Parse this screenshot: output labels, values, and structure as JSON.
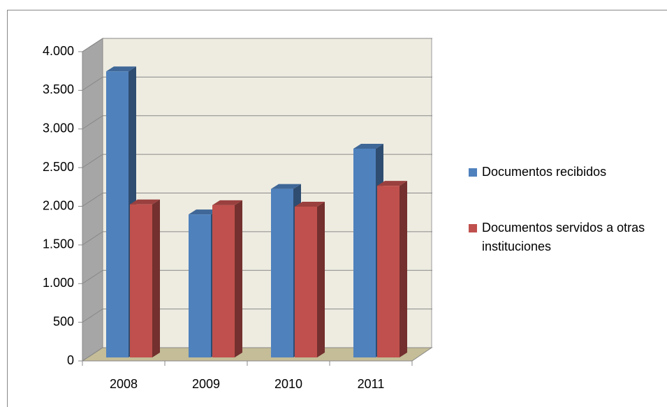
{
  "chart_data": {
    "type": "bar3d",
    "categories": [
      "2008",
      "2009",
      "2010",
      "2011"
    ],
    "series": [
      {
        "name": "Documentos recibidos",
        "color": "#4f81bd",
        "values": [
          3700,
          1850,
          2180,
          2700
        ]
      },
      {
        "name": "Documentos servidos a otras instituciones",
        "color": "#c0504d",
        "values": [
          1980,
          1970,
          1950,
          2220
        ]
      }
    ],
    "ylim": [
      0,
      4000
    ],
    "yticks": [
      0,
      500,
      {
        "value": 1000,
        "label": "1.000"
      },
      {
        "value": 1500,
        "label": "1.500"
      },
      {
        "value": 2000,
        "label": "2.000"
      },
      {
        "value": 2500,
        "label": "2.500"
      },
      {
        "value": 3000,
        "label": "3.000"
      },
      {
        "value": 3500,
        "label": "3.500"
      },
      {
        "value": 4000,
        "label": "4.000"
      }
    ],
    "grid": true,
    "legend": "right"
  }
}
